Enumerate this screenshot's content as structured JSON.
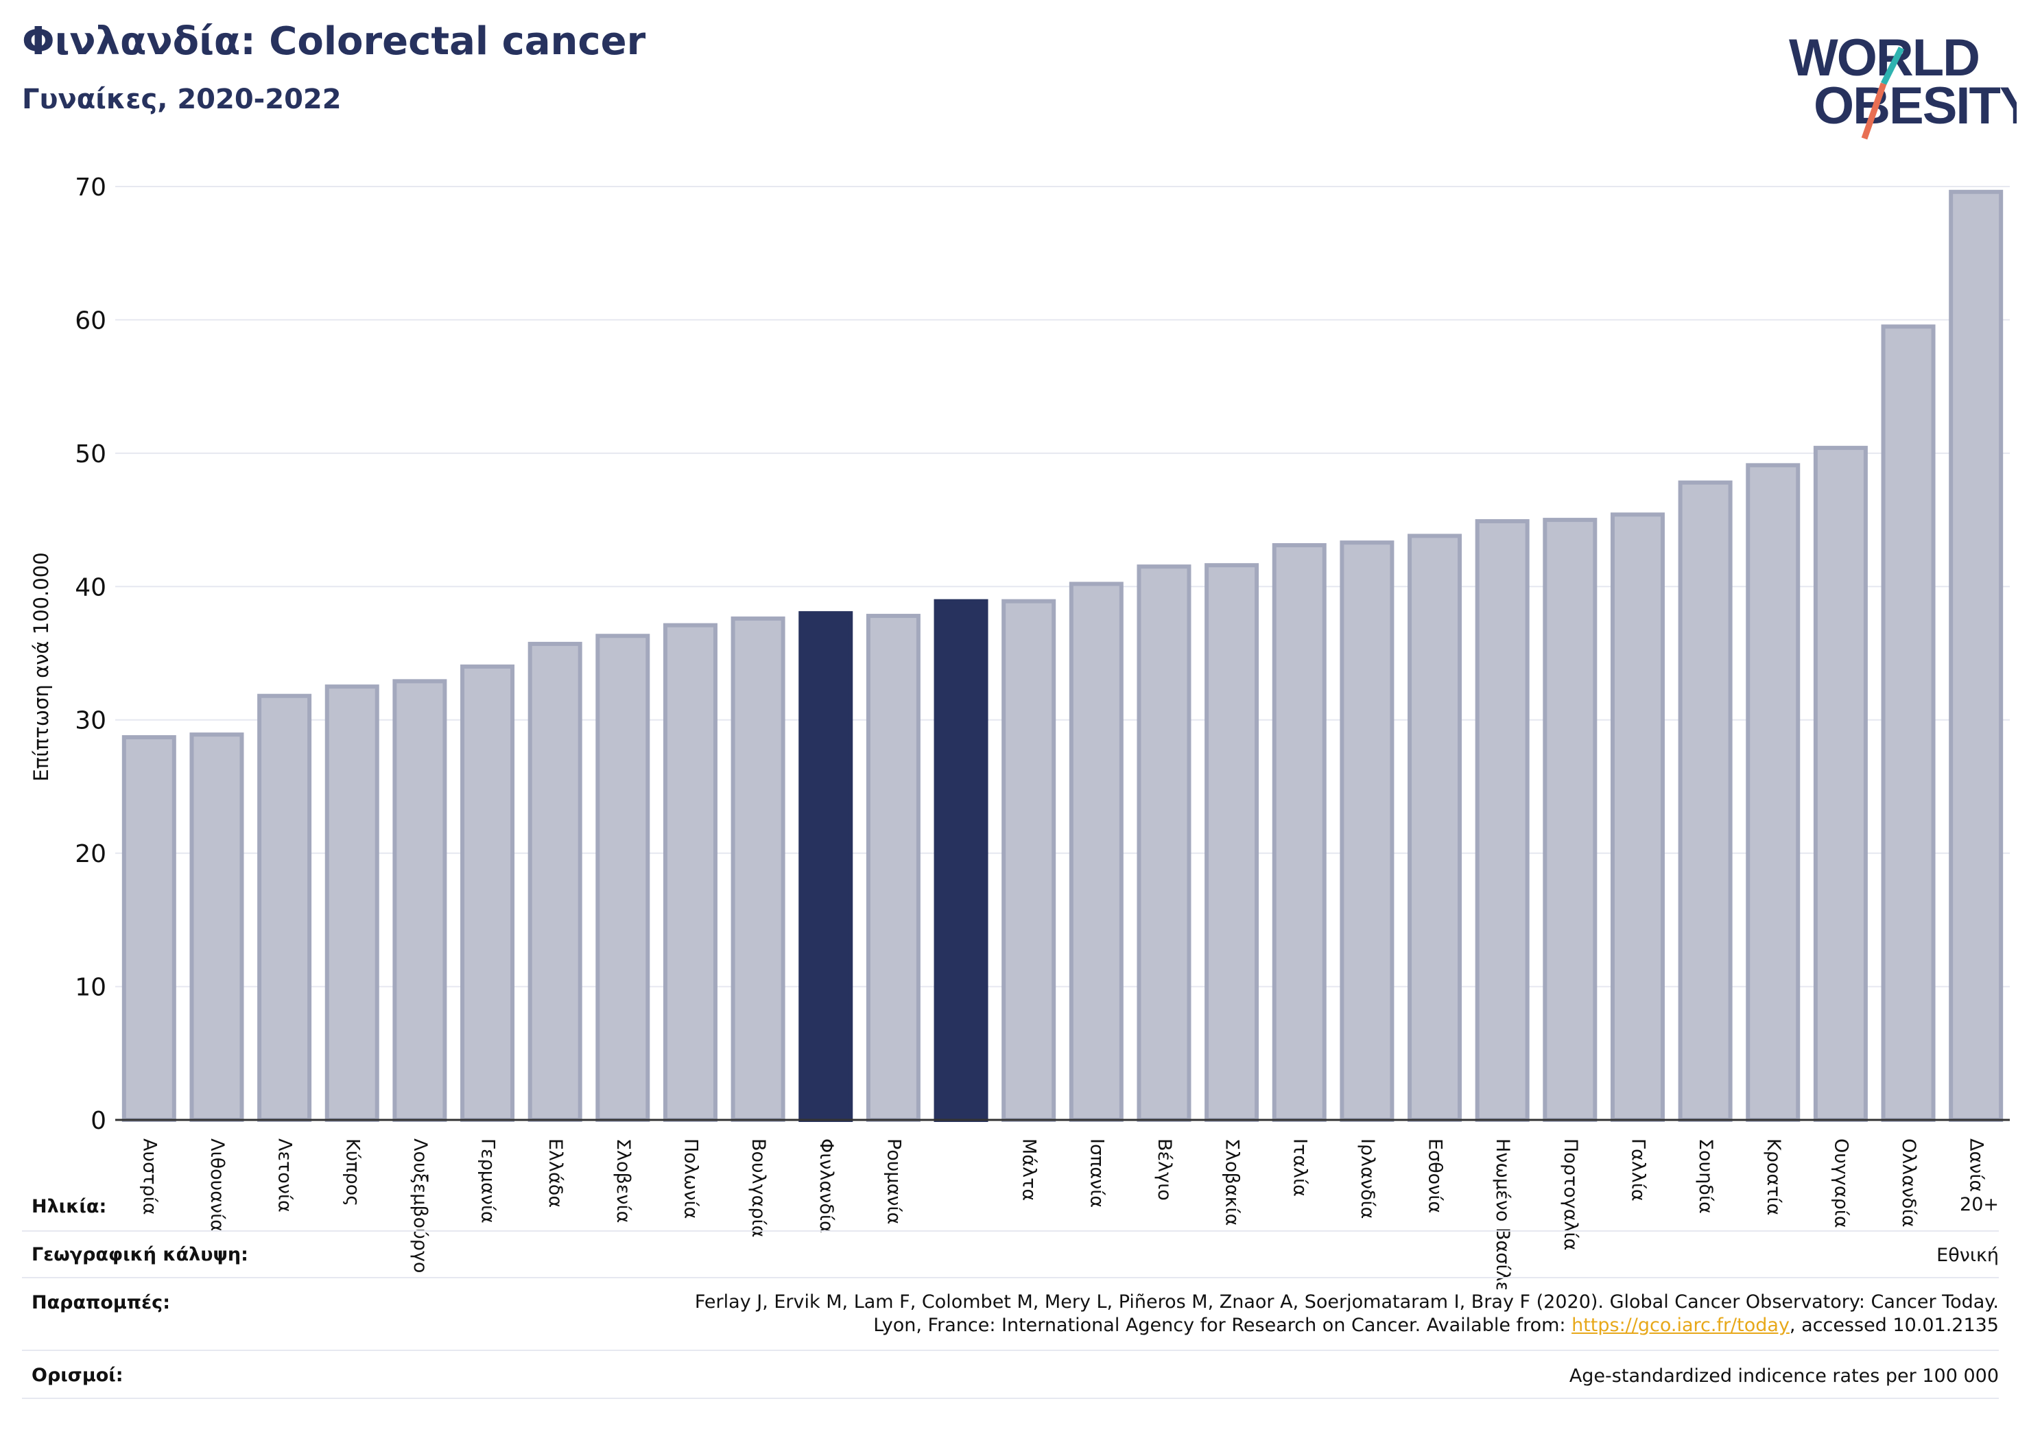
{
  "header": {
    "title": "Φινλανδία: Colorectal cancer",
    "subtitle": "Γυναίκες, 2020-2022"
  },
  "logo": {
    "line1": "WORLD",
    "line2": "OBESITY",
    "text_color": "#27325e",
    "slash_colors": [
      "#2fb3b0",
      "#e86f53"
    ]
  },
  "chart_data": {
    "type": "bar",
    "ylabel": "Επίπτωση ανά 100.000",
    "ylim": [
      0,
      70
    ],
    "yticks": [
      0,
      10,
      20,
      30,
      40,
      50,
      60,
      70
    ],
    "grid": true,
    "colors": {
      "default_bar": "#bec1cf",
      "default_bar_edge": "#a3a8bd",
      "highlight_bar": "#27325e"
    },
    "categories": [
      "Αυστρία",
      "Λιθουανία",
      "Λετονία",
      "Κύπρος",
      "Λουξεμβούργο",
      "Γερμανία",
      "Ελλάδα",
      "Σλοβενία",
      "Πολωνία",
      "Βουλγαρία",
      "Φινλανδία",
      "Ρουμανία",
      "",
      "Μάλτα",
      "Ισπανία",
      "Βέλγιο",
      "Σλοβακία",
      "Ιταλία",
      "Ιρλανδία",
      "Εσθονία",
      "Ηνωμένο Βασίλειο",
      "Πορτογαλία",
      "Γαλλία",
      "Σουηδία",
      "Κροατία",
      "Ουγγαρία",
      "Ολλανδία",
      "Δανία"
    ],
    "values": [
      28.7,
      28.9,
      31.8,
      32.5,
      32.9,
      34.0,
      35.7,
      36.3,
      37.1,
      37.6,
      38.0,
      37.8,
      38.9,
      38.9,
      40.2,
      41.5,
      41.6,
      43.1,
      43.3,
      43.8,
      44.9,
      45.0,
      45.4,
      47.8,
      49.1,
      50.4,
      59.5,
      69.6
    ],
    "highlight": [
      10,
      12
    ]
  },
  "info": {
    "age_label": "Ηλικία:",
    "age_value": "20+",
    "coverage_label": "Γεωγραφική κάλυψη:",
    "coverage_value": "Εθνική",
    "refs_label": "Παραπομπές:",
    "refs_line1": "Ferlay J, Ervik M, Lam F, Colombet M, Mery L, Piñeros M, Znaor A, Soerjomataram I, Bray F (2020). Global Cancer Observatory: Cancer Today.",
    "refs_line2_prefix": "Lyon, France: International Agency for Research on Cancer. Available from: ",
    "refs_link": "https://gco.iarc.fr/today",
    "refs_line2_suffix": ", accessed 10.01.2135",
    "defs_label": "Ορισμοί:",
    "defs_value": "Age-standardized indicence rates per 100 000"
  }
}
